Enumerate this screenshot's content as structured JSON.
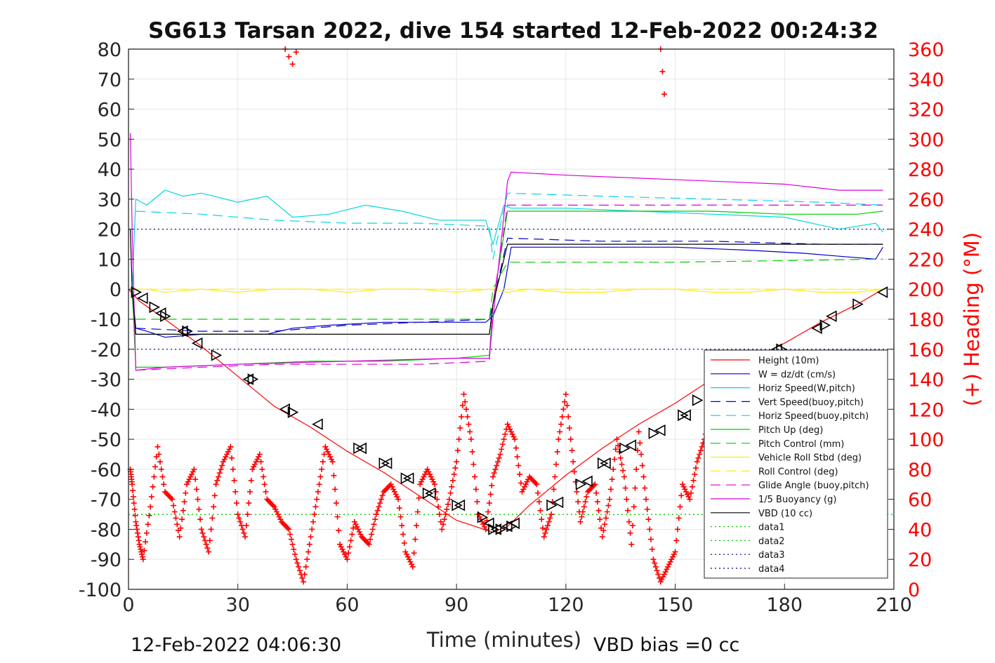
{
  "chart_data": {
    "type": "line",
    "title": "SG613 Tarsan 2022, dive 154 started 12-Feb-2022 00:24:32",
    "xlabel": "Time (minutes)",
    "ylabel_right": "(+) Heading (°M)",
    "xlim": [
      0,
      210
    ],
    "ylim": [
      -100,
      80
    ],
    "ylim_right": [
      0,
      360
    ],
    "x_ticks": [
      "0",
      "30",
      "60",
      "90",
      "120",
      "150",
      "180",
      "210"
    ],
    "y_ticks": [
      "-100",
      "-90",
      "-80",
      "-70",
      "-60",
      "-50",
      "-40",
      "-30",
      "-20",
      "-10",
      "0",
      "10",
      "20",
      "30",
      "40",
      "50",
      "60",
      "70",
      "80"
    ],
    "y_ticks_right": [
      "0",
      "20",
      "40",
      "60",
      "80",
      "100",
      "120",
      "140",
      "160",
      "180",
      "200",
      "220",
      "240",
      "260",
      "280",
      "300",
      "320",
      "340",
      "360"
    ],
    "grid": true,
    "legend_position": "bottom-right",
    "footer_left": "12-Feb-2022 04:06:30",
    "footer_right": "VBD bias =0 cc",
    "series": [
      {
        "name": "Height (10m)",
        "color": "#ff0000",
        "style": "solid",
        "x": [
          0,
          3,
          10,
          20,
          30,
          40,
          50,
          60,
          70,
          80,
          90,
          100,
          104,
          110,
          120,
          130,
          140,
          150,
          160,
          170,
          180,
          190,
          200,
          207
        ],
        "y": [
          0,
          -4,
          -10,
          -19,
          -29,
          -39,
          -46,
          -54,
          -61,
          -69,
          -77,
          -81,
          -79,
          -72,
          -62,
          -53,
          -45,
          -38,
          -30,
          -24,
          -18,
          -11,
          -5,
          0
        ]
      },
      {
        "name": "W = dz/dt (cm/s)",
        "color": "#0000cc",
        "style": "solid",
        "x": [
          1,
          2,
          5,
          10,
          20,
          30,
          38,
          45,
          55,
          70,
          85,
          98,
          100,
          103,
          105,
          115,
          130,
          150,
          170,
          185,
          195,
          205,
          207
        ],
        "y": [
          0,
          -13,
          -14,
          -16,
          -15,
          -15,
          -15,
          -13,
          -12,
          -11,
          -11,
          -11,
          -9,
          0,
          14,
          14,
          14,
          14,
          13,
          12,
          11,
          10,
          14
        ]
      },
      {
        "name": "Horiz Speed(W,pitch)",
        "color": "#00d8e0",
        "style": "solid",
        "x": [
          1,
          2,
          5,
          10,
          15,
          20,
          30,
          38,
          45,
          55,
          65,
          75,
          85,
          98,
          100,
          103,
          105,
          120,
          140,
          160,
          180,
          195,
          205,
          207
        ],
        "y": [
          0,
          30,
          28,
          33,
          31,
          32,
          29,
          31,
          24,
          25,
          28,
          26,
          23,
          23,
          15,
          28,
          27,
          27,
          26,
          25,
          24,
          20,
          22,
          19
        ]
      },
      {
        "name": "Vert Speed(buoy,pitch)",
        "color": "#0000cc",
        "style": "dashed",
        "x": [
          2,
          20,
          40,
          60,
          80,
          99,
          100,
          104,
          130,
          160,
          190,
          207
        ],
        "y": [
          -13,
          -14,
          -14,
          -12,
          -11,
          -10,
          -5,
          17,
          16,
          16,
          15,
          15
        ]
      },
      {
        "name": "Horiz Speed(buoy,pitch)",
        "color": "#00d8e0",
        "style": "dashed",
        "x": [
          2,
          20,
          40,
          60,
          80,
          99,
          100,
          104,
          130,
          160,
          190,
          207
        ],
        "y": [
          26,
          25,
          23,
          22,
          22,
          21,
          10,
          32,
          31,
          30,
          29,
          28
        ]
      },
      {
        "name": "Pitch Up (deg)",
        "color": "#00cc00",
        "style": "solid",
        "x": [
          1,
          2,
          10,
          30,
          50,
          70,
          90,
          99,
          100,
          104,
          120,
          140,
          160,
          180,
          200,
          207
        ],
        "y": [
          0,
          -26,
          -26,
          -25,
          -24,
          -24,
          -23,
          -22,
          -5,
          26,
          26,
          26,
          26,
          25,
          25,
          26
        ]
      },
      {
        "name": "Pitch Control (mm)",
        "color": "#00cc00",
        "style": "dashed",
        "x": [
          2,
          50,
          99,
          100,
          104,
          150,
          207
        ],
        "y": [
          -10,
          -10,
          -10,
          0,
          9,
          9,
          10
        ]
      },
      {
        "name": "Vehicle Roll Stbd (deg)",
        "color": "#ffee00",
        "style": "solid",
        "x": [
          1,
          5,
          10,
          20,
          30,
          40,
          50,
          60,
          70,
          80,
          90,
          99,
          104,
          110,
          120,
          130,
          140,
          150,
          160,
          170,
          180,
          190,
          200,
          207
        ],
        "y": [
          0,
          0,
          -1,
          0,
          -1,
          0,
          0,
          -1,
          0,
          0,
          -1,
          0,
          -1,
          0,
          -1,
          -1,
          0,
          0,
          -1,
          -1,
          0,
          -1,
          -1,
          0
        ]
      },
      {
        "name": "Roll Control (deg)",
        "color": "#ffee00",
        "style": "dashed",
        "x": [
          1,
          20,
          40,
          60,
          80,
          99,
          104,
          130,
          160,
          190,
          207
        ],
        "y": [
          0,
          0,
          0,
          0,
          0,
          0,
          0,
          0,
          0,
          0,
          0
        ]
      },
      {
        "name": "Glide Angle (buoy,pitch)",
        "color": "#dd00dd",
        "style": "dashed",
        "x": [
          2,
          20,
          40,
          60,
          80,
          99,
          100,
          104,
          130,
          160,
          190,
          207
        ],
        "y": [
          -27,
          -26,
          -25,
          -25,
          -25,
          -24,
          -5,
          28,
          28,
          28,
          28,
          28
        ]
      },
      {
        "name": "1/5 Buoyancy (g)",
        "color": "#dd00dd",
        "style": "solid",
        "x": [
          0.5,
          1,
          2,
          10,
          30,
          60,
          90,
          99,
          100,
          104,
          105,
          120,
          140,
          160,
          180,
          195,
          207
        ],
        "y": [
          52,
          20,
          -27,
          -26,
          -25,
          -24,
          -23,
          -23,
          -10,
          36,
          39,
          38,
          37,
          36,
          35,
          33,
          33
        ]
      },
      {
        "name": "VBD (10 cc)",
        "color": "#000000",
        "style": "solid",
        "x": [
          0.5,
          1,
          2,
          99,
          100,
          104,
          207
        ],
        "y": [
          20,
          0,
          -15,
          -15,
          -5,
          15,
          15
        ]
      },
      {
        "name": "data1",
        "color": "#00cc00",
        "style": "dotted",
        "x": [
          0,
          210
        ],
        "y": [
          -75,
          -75
        ]
      },
      {
        "name": "data2",
        "color": "#00cc00",
        "style": "dotted",
        "x": [
          0,
          210
        ],
        "y": [
          -75,
          -75
        ]
      },
      {
        "name": "data3",
        "color": "#000080",
        "style": "dotted",
        "x": [
          0,
          210
        ],
        "y": [
          -20,
          -20
        ]
      },
      {
        "name": "data4",
        "color": "#000080",
        "style": "dotted",
        "x": [
          0,
          210
        ],
        "y": [
          20,
          20
        ]
      }
    ],
    "heading_series": {
      "color": "#ff0000",
      "marker": "+",
      "x": [
        0.5,
        1,
        2,
        3,
        4,
        6,
        8,
        10,
        12,
        14,
        16,
        18,
        20,
        22,
        24,
        26,
        28,
        30,
        32,
        34,
        36,
        38,
        40,
        42,
        44,
        46,
        48,
        50,
        52,
        54,
        56,
        58,
        60,
        62,
        64,
        66,
        68,
        70,
        72,
        74,
        76,
        78,
        80,
        82,
        84,
        86,
        88,
        90,
        92,
        94,
        96,
        98,
        100,
        102,
        104,
        106,
        108,
        110,
        112,
        114,
        116,
        118,
        120,
        122,
        124,
        126,
        128,
        130,
        132,
        134,
        136,
        138,
        140,
        142,
        144,
        146,
        148,
        150,
        152,
        154,
        156,
        158,
        160,
        162,
        164,
        166,
        168,
        170,
        172,
        174,
        176,
        178,
        180,
        182,
        184,
        186,
        188,
        190,
        192,
        194,
        196,
        198,
        200,
        202,
        204,
        206,
        207
      ],
      "y": [
        80,
        70,
        45,
        30,
        20,
        55,
        95,
        65,
        60,
        35,
        70,
        80,
        40,
        25,
        70,
        85,
        95,
        50,
        35,
        80,
        90,
        60,
        55,
        45,
        40,
        20,
        5,
        35,
        65,
        95,
        85,
        30,
        20,
        45,
        35,
        30,
        50,
        65,
        70,
        60,
        25,
        15,
        70,
        80,
        70,
        40,
        60,
        85,
        130,
        100,
        50,
        40,
        75,
        90,
        110,
        100,
        65,
        75,
        70,
        35,
        50,
        100,
        130,
        85,
        45,
        65,
        70,
        35,
        60,
        100,
        75,
        30,
        105,
        60,
        20,
        5,
        15,
        25,
        70,
        60,
        85,
        100,
        120,
        110,
        90,
        60,
        55,
        45,
        40,
        35,
        50,
        55,
        60,
        50,
        40,
        45,
        55,
        65,
        75,
        70,
        60,
        50,
        45,
        40,
        42,
        38,
        40
      ]
    },
    "heading_wrap_clusters": [
      {
        "x": [
          43,
          44,
          45,
          46
        ],
        "y": [
          360,
          355,
          350,
          358
        ]
      },
      {
        "x": [
          146,
          146.5,
          147
        ],
        "y": [
          360,
          345,
          330
        ]
      }
    ],
    "depth_markers": {
      "x": [
        2,
        4,
        7,
        9,
        10,
        15,
        16,
        19,
        24,
        33,
        34,
        43,
        45,
        52,
        63,
        64,
        70,
        71,
        76,
        77,
        82,
        83,
        90,
        91,
        97,
        99,
        100,
        101,
        102,
        104,
        105,
        106,
        116,
        118,
        124,
        126,
        130,
        131,
        136,
        138,
        144,
        146,
        152,
        153,
        156,
        160,
        162,
        167,
        168,
        178,
        179,
        189,
        191,
        193,
        200,
        207
      ],
      "y": [
        -1,
        -3,
        -6,
        -8,
        -9,
        -14,
        -14,
        -18,
        -22,
        -30,
        -30,
        -40,
        -41,
        -45,
        -53,
        -53,
        -58,
        -58,
        -63,
        -63,
        -68,
        -68,
        -72,
        -72,
        -76,
        -78,
        -80,
        -80,
        -80,
        -79,
        -79,
        -78,
        -72,
        -71,
        -65,
        -64,
        -58,
        -58,
        -53,
        -52,
        -48,
        -47,
        -42,
        -42,
        -37,
        -35,
        -35,
        -31,
        -30,
        -20,
        -20,
        -13,
        -12,
        -9,
        -5,
        -1
      ]
    }
  }
}
